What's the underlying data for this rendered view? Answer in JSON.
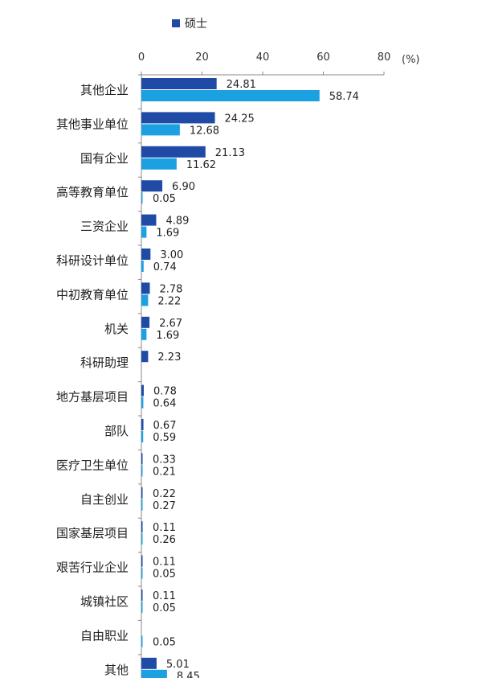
{
  "legend": {
    "label": "硕士",
    "color": "#1f4aa6"
  },
  "chart_data": {
    "type": "bar",
    "orientation": "horizontal",
    "title": "",
    "unit_label": "(%)",
    "xlim": [
      0,
      80
    ],
    "xticks": [
      0,
      20,
      40,
      60,
      80
    ],
    "categories": [
      "其他企业",
      "其他事业单位",
      "国有企业",
      "高等教育单位",
      "三资企业",
      "科研设计单位",
      "中初教育单位",
      "机关",
      "科研助理",
      "地方基层项目",
      "部队",
      "医疗卫生单位",
      "自主创业",
      "国家基层项目",
      "艰苦行业企业",
      "城镇社区",
      "自由职业",
      "其他"
    ],
    "series": [
      {
        "name": "硕士",
        "color": "#1f4aa6",
        "values": [
          24.81,
          24.25,
          21.13,
          6.9,
          4.89,
          3.0,
          2.78,
          2.67,
          2.23,
          0.78,
          0.67,
          0.33,
          0.22,
          0.11,
          0.11,
          0.11,
          null,
          5.01
        ],
        "labels": [
          "24.81",
          "24.25",
          "21.13",
          "6.90",
          "4.89",
          "3.00",
          "2.78",
          "2.67",
          "2.23",
          "0.78",
          "0.67",
          "0.33",
          "0.22",
          "0.11",
          "0.11",
          "0.11",
          "",
          "5.01"
        ]
      },
      {
        "color": "#1ba1e2",
        "values": [
          58.74,
          12.68,
          11.62,
          0.05,
          1.69,
          0.74,
          2.22,
          1.69,
          null,
          0.64,
          0.59,
          0.21,
          0.27,
          0.26,
          0.05,
          0.05,
          0.05,
          8.45
        ],
        "labels": [
          "58.74",
          "12.68",
          "11.62",
          "0.05",
          "1.69",
          "0.74",
          "2.22",
          "1.69",
          "",
          "0.64",
          "0.59",
          "0.21",
          "0.27",
          "0.26",
          "0.05",
          "0.05",
          "0.05",
          "8.45"
        ]
      }
    ],
    "grid": false,
    "legend_position": "top"
  }
}
